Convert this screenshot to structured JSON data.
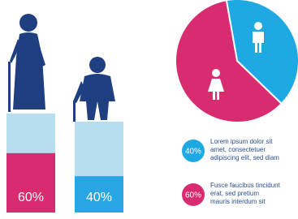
{
  "bars": [
    {
      "label": "60%",
      "value": 60,
      "color": "#d92b6f"
    },
    {
      "label": "40%",
      "value": 40,
      "color": "#27a6e3"
    }
  ],
  "pie": [
    {
      "value": 40,
      "color": "#1fa9e3",
      "label": "40%",
      "text": [
        "Lorem ipsum dolor sit",
        "amet, consectetuer",
        "adipiscing elit, sed diam"
      ]
    },
    {
      "value": 60,
      "color": "#d92b6f",
      "label": "60%",
      "text": [
        "Fusce faucibus tincidunt",
        "erat, sed pretium",
        "mauris interdum sit"
      ]
    }
  ]
}
